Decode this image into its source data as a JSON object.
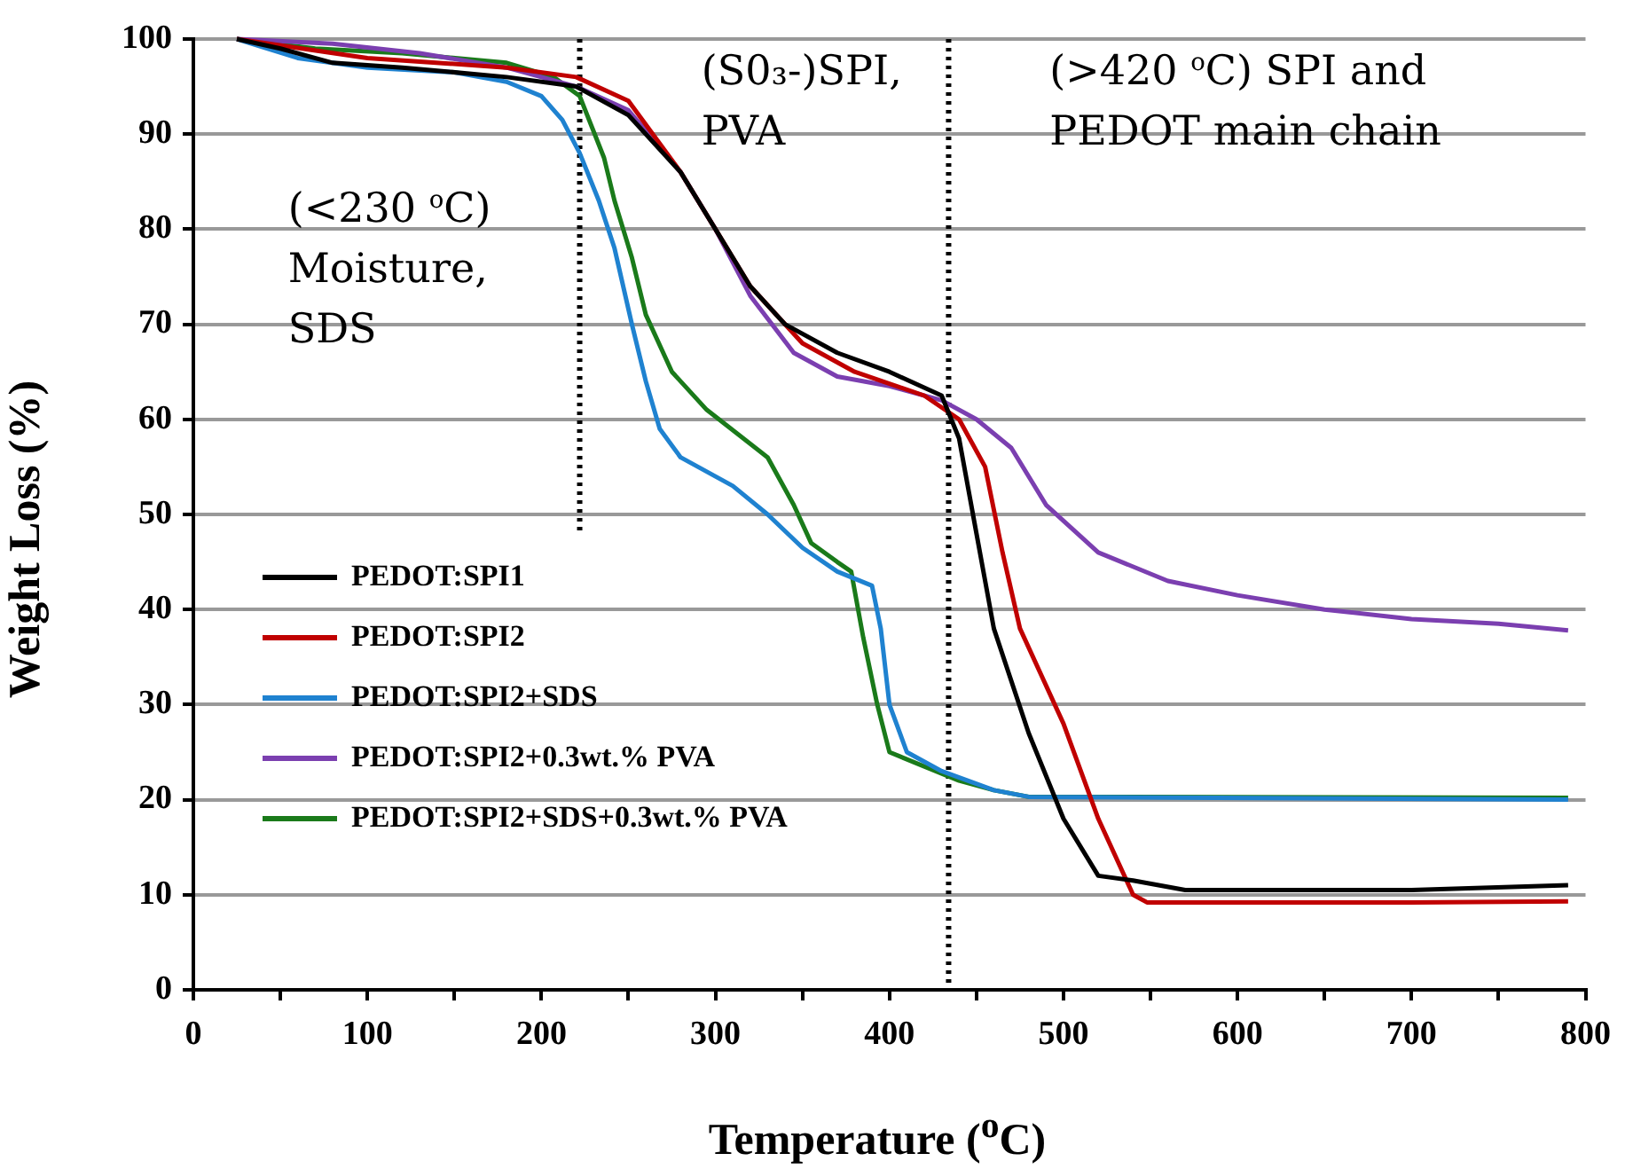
{
  "chart_data": {
    "type": "line",
    "xlabel": "Temperature ($^{o}$C)",
    "ylabel": "Weight Loss (%)",
    "xlim": [
      0,
      800
    ],
    "xticks": [
      0,
      {
        "value": 50,
        "label": null
      },
      100,
      {
        "value": 150,
        "label": null
      },
      200,
      {
        "value": 250,
        "label": null
      },
      300,
      {
        "value": 350,
        "label": null
      },
      400,
      {
        "value": 450,
        "label": null
      },
      500,
      {
        "value": 550,
        "label": null
      },
      600,
      {
        "value": 650,
        "label": null
      },
      700,
      {
        "value": 750,
        "label": null
      },
      800
    ],
    "ylim": [
      0,
      100
    ],
    "yticks": [
      0,
      10,
      20,
      30,
      40,
      50,
      60,
      70,
      80,
      90,
      100
    ],
    "grid": "y",
    "legend": "bottom left",
    "marker": "none",
    "line_style": "solid",
    "ref_lines": [
      {
        "axis": "x",
        "value": 222,
        "line_style": "dotted",
        "color": "#000000"
      },
      {
        "axis": "x",
        "value": 434,
        "line_style": "dotted",
        "color": "#000000"
      }
    ],
    "annotations": [
      "(<230 $^{o}$C)\nMoisture,\nSDS",
      "(S0₃-)SPI,\nPVA",
      "(>420 $^{o}$C) SPI and\nPEDOT main chain"
    ],
    "series": [
      {
        "name": "PEDOT:SPI1",
        "color": "#000000",
        "x": [
          25,
          50,
          80,
          120,
          180,
          220,
          250,
          280,
          300,
          320,
          340,
          370,
          400,
          430,
          440,
          450,
          460,
          480,
          500,
          520,
          540,
          570,
          700,
          790
        ],
        "values": [
          100,
          99,
          97.5,
          97,
          96,
          95,
          92,
          86,
          80,
          74,
          70,
          67,
          65,
          62.5,
          58,
          48,
          38,
          27,
          18,
          12,
          11.5,
          10.5,
          10.5,
          11
        ]
      },
      {
        "name": "PEDOT:SPI2",
        "color": "#c00000",
        "x": [
          25,
          100,
          180,
          220,
          250,
          280,
          300,
          320,
          350,
          380,
          420,
          440,
          455,
          465,
          475,
          500,
          520,
          540,
          548,
          700,
          790
        ],
        "values": [
          100,
          98,
          97,
          96,
          93.5,
          86,
          80,
          74,
          68,
          65,
          62.5,
          60,
          55,
          46,
          38,
          28,
          18,
          10,
          9.2,
          9.2,
          9.3
        ]
      },
      {
        "name": "PEDOT:SPI2+SDS",
        "color": "#1f82d0",
        "x": [
          25,
          60,
          100,
          150,
          180,
          200,
          212,
          222,
          233,
          242,
          252,
          260,
          268,
          280,
          310,
          330,
          350,
          370,
          390,
          395,
          400,
          410,
          430,
          460,
          480,
          790
        ],
        "values": [
          100,
          98,
          97,
          96.5,
          95.5,
          94,
          91.5,
          88,
          83,
          78,
          70,
          64,
          59,
          56,
          53,
          50,
          46.5,
          44,
          42.5,
          38,
          30,
          25,
          23,
          21,
          20.3,
          20
        ]
      },
      {
        "name": "PEDOT:SPI2+0.3wt.% PVA",
        "color": "#7b3fb0",
        "x": [
          25,
          80,
          130,
          180,
          220,
          250,
          280,
          300,
          320,
          345,
          370,
          400,
          430,
          450,
          470,
          490,
          520,
          560,
          600,
          650,
          700,
          750,
          790
        ],
        "values": [
          100,
          99.5,
          98.5,
          97,
          95,
          92.5,
          86,
          80,
          73,
          67,
          64.5,
          63.5,
          62,
          60,
          57,
          51,
          46,
          43,
          41.5,
          40,
          39,
          38.5,
          37.8
        ]
      },
      {
        "name": "PEDOT:SPI2+SDS+0.3wt.% PVA",
        "color": "#1a7a1a",
        "x": [
          25,
          70,
          120,
          180,
          207,
          222,
          236,
          242,
          252,
          260,
          275,
          295,
          330,
          345,
          355,
          370,
          378,
          385,
          393,
          400,
          420,
          440,
          460,
          480,
          790
        ],
        "values": [
          100,
          99,
          98.5,
          97.5,
          96,
          94,
          87.5,
          83,
          77,
          71,
          65,
          61,
          56,
          51,
          47,
          45,
          44,
          37,
          30,
          25,
          23.5,
          22,
          21,
          20.3,
          20.2
        ]
      }
    ]
  }
}
